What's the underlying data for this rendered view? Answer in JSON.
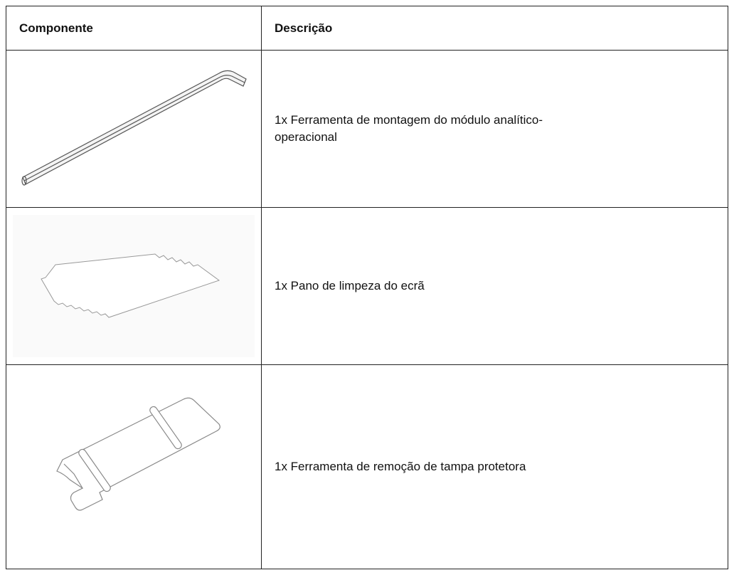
{
  "table": {
    "headers": [
      "Componente",
      "Descrição"
    ],
    "rows": [
      [
        "1x Ferramenta de montagem do módulo analítico-operacional"
      ],
      [
        "1x Pano de limpeza do ecrã"
      ],
      [
        "1x Ferramenta de remoção de tampa protetora"
      ]
    ]
  }
}
